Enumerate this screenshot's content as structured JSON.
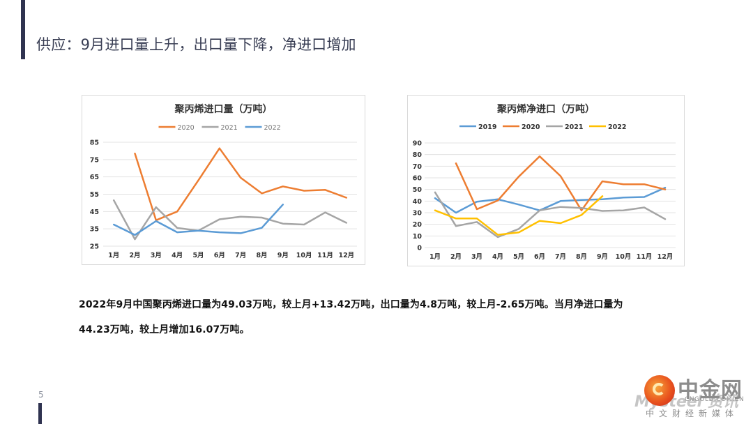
{
  "header": {
    "title": "供应：9月进口量上升，出口量下降，净进口增加"
  },
  "page_number": "5",
  "body": {
    "line1": "2022年9月中国聚丙烯进口量为49.03万吨，较上月+13.42万吨，出口量为4.8万吨，较上月-2.65万吨。当月净进口量为",
    "line2": "44.23万吨，较上月增加16.07万吨。"
  },
  "watermark": {
    "brand": "中金网",
    "ghost": "Mysteel 资讯",
    "url": "CNGOLD.COM.CN",
    "slogan": "中文财经新媒体"
  },
  "chart_data": [
    {
      "type": "line",
      "title": "聚丙烯进口量（万吨）",
      "xlabel": "",
      "ylabel": "",
      "categories": [
        "1月",
        "2月",
        "3月",
        "4月",
        "5月",
        "6月",
        "7月",
        "8月",
        "9月",
        "10月",
        "11月",
        "12月"
      ],
      "yticks": [
        "85",
        "75",
        "65",
        "55",
        "45",
        "35",
        "25"
      ],
      "ylim": [
        25,
        85
      ],
      "grid": true,
      "legend_position": "top",
      "series": [
        {
          "name": "2020",
          "color": "#ed7d31",
          "values": [
            null,
            78.5,
            40,
            45,
            63,
            81.5,
            64.5,
            55.5,
            59.5,
            57,
            57.5,
            53
          ]
        },
        {
          "name": "2021",
          "color": "#a5a5a5",
          "values": [
            51.5,
            29,
            47.5,
            35.5,
            34,
            40.5,
            42,
            41.5,
            38,
            37.5,
            44.5,
            38.5
          ]
        },
        {
          "name": "2022",
          "color": "#5b9bd5",
          "values": [
            37.5,
            31.5,
            39.5,
            33,
            34,
            33,
            32.5,
            35.6,
            49.03,
            null,
            null,
            null
          ]
        }
      ]
    },
    {
      "type": "line",
      "title": "聚丙烯净进口（万吨）",
      "xlabel": "",
      "ylabel": "",
      "categories": [
        "1月",
        "2月",
        "3月",
        "4月",
        "5月",
        "6月",
        "7月",
        "8月",
        "9月",
        "10月",
        "11月",
        "12月"
      ],
      "yticks": [
        "90",
        "80",
        "70",
        "60",
        "50",
        "40",
        "30",
        "20",
        "10",
        "0"
      ],
      "ylim": [
        0,
        90
      ],
      "grid": true,
      "legend_position": "top",
      "series": [
        {
          "name": "2019",
          "color": "#5b9bd5",
          "values": [
            42.5,
            30,
            39.5,
            41.5,
            37,
            32,
            40,
            41,
            41.5,
            43,
            43.5,
            51.5
          ]
        },
        {
          "name": "2020",
          "color": "#ed7d31",
          "values": [
            null,
            72.5,
            33,
            40.5,
            61,
            78.5,
            61.5,
            32,
            57,
            54.5,
            54.5,
            50
          ]
        },
        {
          "name": "2021",
          "color": "#a5a5a5",
          "values": [
            47.5,
            18.5,
            22,
            9,
            16,
            32,
            35,
            34,
            31.5,
            32,
            34.5,
            24.5
          ]
        },
        {
          "name": "2022",
          "color": "#ffc000",
          "values": [
            32,
            25,
            25,
            11,
            13,
            23,
            21,
            28,
            44.23,
            null,
            null,
            null
          ]
        }
      ]
    }
  ]
}
